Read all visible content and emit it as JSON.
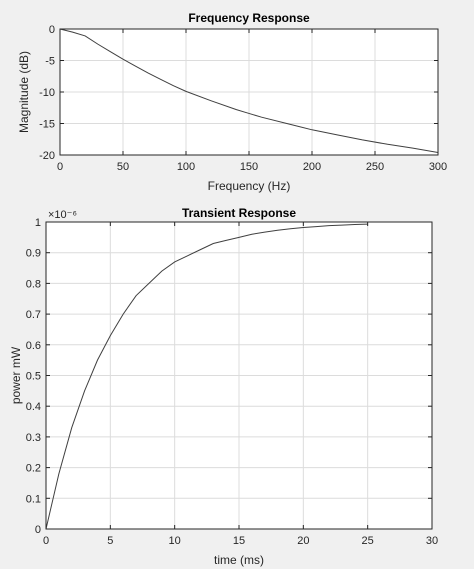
{
  "chart_data": [
    {
      "type": "line",
      "title": "Frequency Response",
      "xlabel": "Frequency (Hz)",
      "ylabel": "Magnitude (dB)",
      "xlim": [
        0,
        300
      ],
      "ylim": [
        -20,
        0
      ],
      "xticks": [
        0,
        50,
        100,
        150,
        200,
        250,
        300
      ],
      "yticks": [
        0,
        -5,
        -10,
        -15,
        -20
      ],
      "grid": true,
      "series": [
        {
          "x": [
            0,
            10,
            20,
            30,
            40,
            50,
            60,
            70,
            80,
            90,
            100,
            120,
            140,
            150,
            160,
            180,
            200,
            220,
            240,
            260,
            280,
            300
          ],
          "y": [
            0,
            -0.5,
            -1.1,
            -2.4,
            -3.6,
            -4.8,
            -5.9,
            -7.0,
            -8.0,
            -9.0,
            -9.9,
            -11.4,
            -12.8,
            -13.4,
            -14.0,
            -15.0,
            -16.0,
            -16.8,
            -17.6,
            -18.3,
            -18.9,
            -19.6
          ]
        }
      ]
    },
    {
      "type": "line",
      "title": "Transient Response",
      "xlabel": "time (ms)",
      "ylabel": "power mW",
      "y_exponent": "×10⁻⁶",
      "xlim": [
        0,
        30
      ],
      "ylim": [
        0,
        1
      ],
      "xticks": [
        0,
        5,
        10,
        15,
        20,
        25,
        30
      ],
      "yticks": [
        0,
        0.1,
        0.2,
        0.3,
        0.4,
        0.5,
        0.6,
        0.7,
        0.8,
        0.9,
        1
      ],
      "grid": true,
      "series": [
        {
          "x": [
            0,
            1,
            2,
            3,
            4,
            5,
            6,
            7,
            8,
            9,
            10,
            11,
            12,
            13,
            14,
            15,
            16,
            17,
            18,
            19,
            20,
            21,
            22,
            23,
            24,
            25
          ],
          "y": [
            0,
            0.18,
            0.33,
            0.45,
            0.55,
            0.63,
            0.7,
            0.76,
            0.8,
            0.84,
            0.87,
            0.89,
            0.91,
            0.93,
            0.94,
            0.95,
            0.96,
            0.967,
            0.973,
            0.978,
            0.982,
            0.985,
            0.988,
            0.99,
            0.992,
            0.993
          ]
        }
      ]
    }
  ]
}
